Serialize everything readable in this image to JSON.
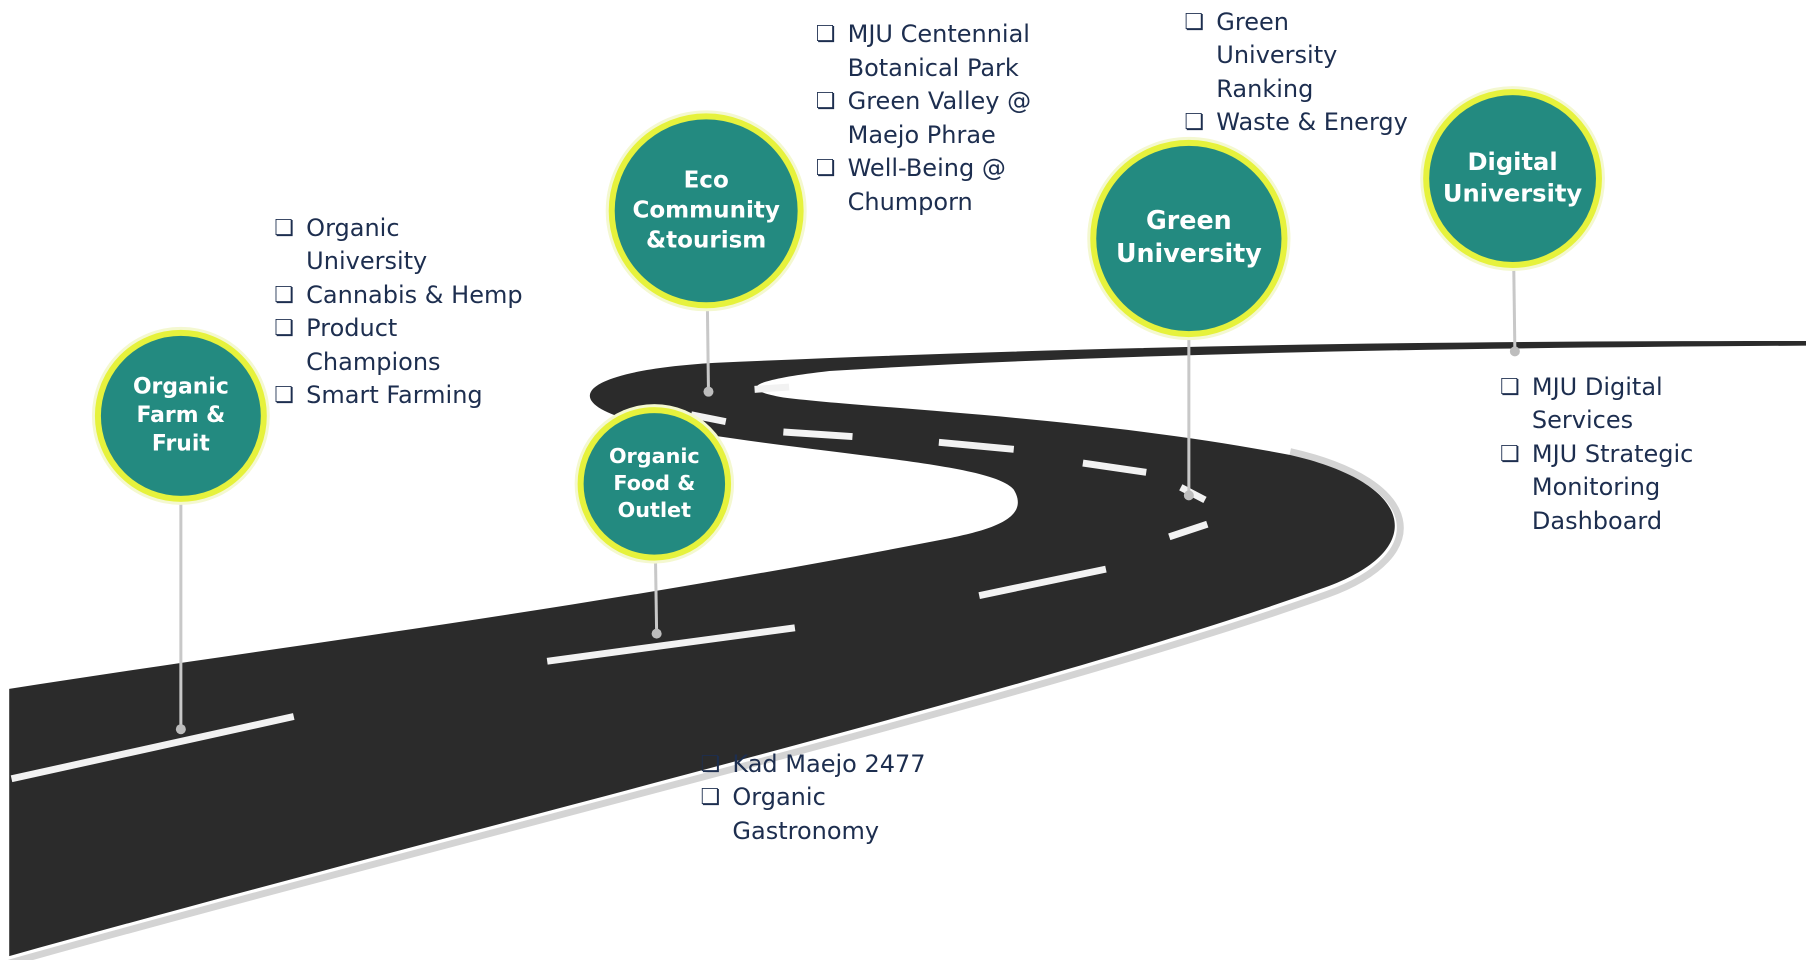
{
  "milestones": [
    {
      "label": [
        "Organic",
        "Farm &",
        "Fruit"
      ],
      "items": [
        [
          "Organic",
          "University"
        ],
        [
          "Cannabis & Hemp"
        ],
        [
          "Product",
          "Champions"
        ],
        [
          "Smart Farming"
        ]
      ]
    },
    {
      "label": [
        "Organic",
        "Food &",
        "Outlet"
      ],
      "items": [
        [
          "Kad Maejo 2477"
        ],
        [
          "Organic",
          "Gastronomy"
        ]
      ]
    },
    {
      "label": [
        "Eco",
        "Community",
        "&tourism"
      ],
      "items": [
        [
          "MJU Centennial",
          "Botanical Park"
        ],
        [
          "Green Valley @",
          "Maejo Phrae"
        ],
        [
          "Well-Being @",
          "Chumporn"
        ]
      ]
    },
    {
      "label": [
        "Green",
        "University"
      ],
      "items": [
        [
          "Green",
          "University",
          "Ranking"
        ],
        [
          "Waste & Energy"
        ]
      ]
    },
    {
      "label": [
        "Digital",
        "University"
      ],
      "items": [
        [
          "MJU Digital",
          "Services"
        ],
        [
          "MJU Strategic",
          "Monitoring",
          "Dashboard"
        ]
      ]
    }
  ]
}
